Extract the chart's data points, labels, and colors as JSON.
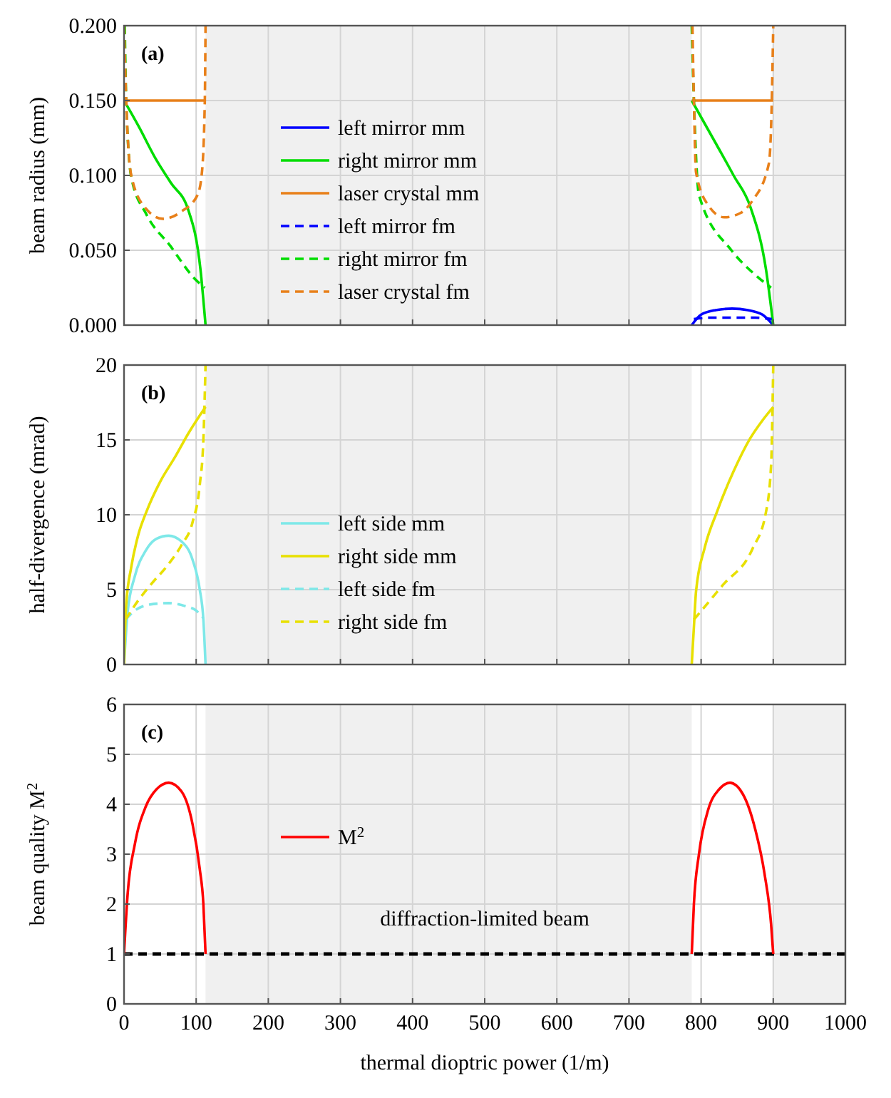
{
  "chart_data": [
    {
      "type": "line",
      "ylabel": "beam radius (mm)",
      "annotations": [
        "(a)"
      ],
      "xlim": [
        0,
        1000
      ],
      "xticks": [
        0,
        100,
        200,
        300,
        400,
        500,
        600,
        700,
        800,
        900,
        1000
      ],
      "ylim": [
        0,
        0.2
      ],
      "yticks": [
        {
          "value": 0,
          "label": "0.000"
        },
        {
          "value": 0.05,
          "label": "0.050"
        },
        {
          "value": 0.1,
          "label": "0.100"
        },
        {
          "value": 0.15,
          "label": "0.150"
        },
        {
          "value": 0.2,
          "label": "0.200"
        }
      ],
      "tick_labels": "y",
      "grid": true,
      "legend": "center left",
      "marker": "none",
      "bands": [
        {
          "axis": "x",
          "from": 113,
          "to": 787,
          "color": "#f0f0f0"
        },
        {
          "axis": "x",
          "from": 900,
          "to": 1000,
          "color": "#f0f0f0"
        }
      ],
      "series": [
        {
          "name": "left mirror mm",
          "color": "#0000ff",
          "line_style": "solid",
          "x": [
            787,
            800,
            820,
            843,
            865,
            885,
            900
          ],
          "values": [
            0,
            0.007,
            0.01,
            0.011,
            0.01,
            0.007,
            0
          ]
        },
        {
          "name": "right mirror mm",
          "color": "#00dd00",
          "line_style": "solid",
          "x": [
            0,
            20,
            44,
            65,
            89,
            106,
            113,
            450,
            787,
            822,
            845,
            869,
            890,
            900
          ],
          "values": [
            0.15,
            0.133,
            0.111,
            0.095,
            0.077,
            0.037,
            0,
            null,
            0.15,
            0.12,
            0.1,
            0.078,
            0.037,
            0
          ]
        },
        {
          "name": "laser crystal mm",
          "color": "#e8801a",
          "line_style": "solid",
          "x": [
            0,
            113,
            450,
            787,
            900
          ],
          "values": [
            0.15,
            0.15,
            null,
            0.15,
            0.15
          ]
        },
        {
          "name": "left mirror fm",
          "color": "#0000ff",
          "line_style": "dashed",
          "x": [
            790,
            810,
            843,
            875,
            898
          ],
          "values": [
            0.004,
            0.005,
            0.005,
            0.005,
            0.004
          ]
        },
        {
          "name": "right mirror fm",
          "color": "#00dd00",
          "line_style": "dashed",
          "x": [
            1,
            3,
            10,
            31,
            64,
            98,
            112,
            450,
            787,
            790,
            797,
            842,
            874,
            897
          ],
          "values": [
            0.2,
            0.15,
            0.099,
            0.074,
            0.053,
            0.031,
            0.025,
            null,
            0.2,
            0.15,
            0.087,
            0.05,
            0.034,
            0.025
          ]
        },
        {
          "name": "laser crystal fm",
          "color": "#e8801a",
          "line_style": "dashed",
          "x": [
            0,
            3,
            10,
            30,
            54,
            80,
            102,
            108,
            112,
            113,
            450,
            788,
            790,
            793,
            810,
            832,
            855,
            871,
            894,
            898,
            900
          ],
          "values": [
            0.2,
            0.15,
            0.1,
            0.078,
            0.071,
            0.076,
            0.087,
            0.102,
            0.15,
            0.2,
            null,
            0.2,
            0.15,
            0.102,
            0.08,
            0.072,
            0.075,
            0.083,
            0.108,
            0.15,
            0.2
          ]
        }
      ]
    },
    {
      "type": "line",
      "ylabel": "half-divergence (mrad)",
      "annotations": [
        "(b)"
      ],
      "xlim": [
        0,
        1000
      ],
      "xticks": [
        0,
        100,
        200,
        300,
        400,
        500,
        600,
        700,
        800,
        900,
        1000
      ],
      "ylim": [
        0,
        20
      ],
      "yticks": [
        0,
        5,
        10,
        15,
        20
      ],
      "tick_labels": "y",
      "grid": true,
      "legend": "bottom left",
      "marker": "none",
      "bands": [
        {
          "axis": "x",
          "from": 113,
          "to": 787,
          "color": "#f0f0f0"
        },
        {
          "axis": "x",
          "from": 900,
          "to": 1000,
          "color": "#f0f0f0"
        }
      ],
      "series": [
        {
          "name": "left side mm",
          "color": "#7ee8e8",
          "line_style": "solid",
          "x": [
            0,
            5,
            15,
            30,
            45,
            62,
            80,
            95,
            105,
            110,
            113
          ],
          "values": [
            0,
            3.5,
            5.9,
            7.6,
            8.4,
            8.6,
            8.2,
            7.0,
            5.0,
            3.0,
            0
          ]
        },
        {
          "name": "right side mm",
          "color": "#e8e000",
          "line_style": "solid",
          "x": [
            0,
            3,
            10,
            20,
            31,
            50,
            70,
            90,
            113,
            450,
            787,
            790,
            793,
            805,
            822,
            845,
            868,
            885,
            900
          ],
          "values": [
            0,
            4,
            6.5,
            8.7,
            10.2,
            12.2,
            13.8,
            15.5,
            17.2,
            null,
            0,
            2.5,
            4.9,
            7.8,
            10.2,
            12.9,
            15.1,
            16.3,
            17.2
          ]
        },
        {
          "name": "left side fm",
          "color": "#7ee8e8",
          "line_style": "dashed",
          "x": [
            2,
            15,
            35,
            62,
            85,
            100,
            110
          ],
          "values": [
            3.0,
            3.6,
            4.0,
            4.1,
            3.9,
            3.6,
            3.1
          ]
        },
        {
          "name": "right side fm",
          "color": "#e8e000",
          "line_style": "dashed",
          "x": [
            2,
            20,
            40,
            60,
            80,
            95,
            105,
            110,
            113,
            450,
            790,
            797,
            830,
            871,
            890,
            897,
            900
          ],
          "values": [
            3,
            4.3,
            5.5,
            6.6,
            8.0,
            9.5,
            12,
            15,
            20,
            null,
            3.0,
            3.4,
            5.3,
            7.7,
            10.2,
            13.3,
            20
          ]
        }
      ]
    },
    {
      "type": "line",
      "xlabel": "thermal dioptric power (1/m)",
      "ylabel": "beam quality M$^{2}$",
      "annotations": [
        "(c)"
      ],
      "xlim": [
        0,
        1000
      ],
      "xticks": [
        0,
        100,
        200,
        300,
        400,
        500,
        600,
        700,
        800,
        900,
        1000
      ],
      "ylim": [
        0,
        6
      ],
      "yticks": [
        0,
        1,
        2,
        3,
        4,
        5,
        6
      ],
      "grid": true,
      "legend": "center left",
      "marker": "none",
      "bands": [
        {
          "axis": "x",
          "from": 113,
          "to": 787,
          "color": "#f0f0f0"
        },
        {
          "axis": "x",
          "from": 900,
          "to": 1000,
          "color": "#f0f0f0"
        }
      ],
      "ref_lines": [
        {
          "axis": "y",
          "value": 1,
          "label": "diffraction-limited beam",
          "color": "#000000",
          "line_style": "dashed"
        }
      ],
      "series": [
        {
          "name": "M$^{2}$",
          "color": "#ff0000",
          "line_style": "solid",
          "x": [
            0,
            5,
            15,
            30,
            45,
            62,
            80,
            95,
            105,
            110,
            113,
            450,
            787,
            790,
            797,
            810,
            825,
            840,
            858,
            875,
            888,
            897,
            900
          ],
          "values": [
            1,
            2.2,
            3.2,
            3.95,
            4.3,
            4.43,
            4.25,
            3.6,
            2.7,
            2.0,
            1,
            null,
            1,
            2.0,
            3.0,
            3.9,
            4.3,
            4.43,
            4.2,
            3.5,
            2.6,
            1.6,
            1
          ]
        }
      ]
    }
  ]
}
